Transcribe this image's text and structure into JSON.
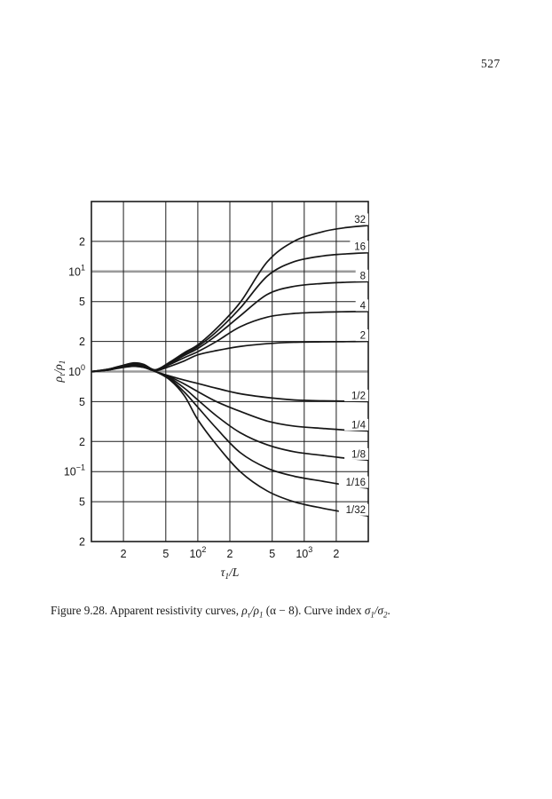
{
  "page": {
    "number": "527"
  },
  "caption": {
    "label": "Figure 9.28.",
    "text1": " Apparent resistivity curves, ",
    "rho": "ρ",
    "tau": "τ",
    "slash": "/",
    "one": "1",
    "two": "2",
    "text2": " (α − 8). Curve index ",
    "sigma": "σ",
    "period": "."
  },
  "chart_data": {
    "type": "line",
    "x_scale": "log",
    "y_scale": "log",
    "x_range": [
      10,
      4000
    ],
    "y_range": [
      0.02,
      50
    ],
    "xlabel": {
      "base": "τ",
      "sub": "1",
      "rest": "/L"
    },
    "ylabel": {
      "rho": "ρ",
      "sub1": "τ",
      "slash": "/",
      "rho2": "ρ",
      "sub2": "1"
    },
    "grid": true,
    "x_gridlines": [
      20,
      50,
      100,
      200,
      500,
      1000,
      2000
    ],
    "y_gridlines": [
      0.05,
      0.1,
      0.2,
      0.5,
      2,
      5,
      20
    ],
    "y_decade_gridlines": [
      1,
      10
    ],
    "x_ticks": [
      {
        "value": 20,
        "label": "2"
      },
      {
        "value": 50,
        "label": "5"
      },
      {
        "value": 100,
        "label": "10",
        "exp": "2"
      },
      {
        "value": 200,
        "label": "2"
      },
      {
        "value": 500,
        "label": "5"
      },
      {
        "value": 1000,
        "label": "10",
        "exp": "3"
      },
      {
        "value": 2000,
        "label": "2"
      }
    ],
    "y_ticks": [
      {
        "value": 20,
        "label": "2"
      },
      {
        "value": 10,
        "label": "10",
        "exp": "1"
      },
      {
        "value": 5,
        "label": "5"
      },
      {
        "value": 2,
        "label": "2"
      },
      {
        "value": 1,
        "label": "10",
        "exp": "0"
      },
      {
        "value": 0.5,
        "label": "5"
      },
      {
        "value": 0.2,
        "label": "2"
      },
      {
        "value": 0.1,
        "label": "10",
        "exp": "−1"
      },
      {
        "value": 0.05,
        "label": "5"
      },
      {
        "value": 0.02,
        "label": "2"
      }
    ],
    "x_values": [
      10,
      14,
      19,
      25,
      31,
      40,
      55,
      75,
      100,
      150,
      250,
      450,
      800,
      1500,
      2500,
      4000
    ],
    "series": [
      {
        "name": "32",
        "label": "32",
        "values": [
          1.0,
          1.05,
          1.14,
          1.22,
          1.18,
          1.04,
          1.25,
          1.55,
          1.85,
          2.7,
          4.9,
          12.5,
          20.0,
          25.0,
          27.5,
          28.8
        ]
      },
      {
        "name": "16",
        "label": "16",
        "values": [
          1.0,
          1.05,
          1.13,
          1.2,
          1.16,
          1.04,
          1.23,
          1.5,
          1.78,
          2.5,
          4.3,
          9.0,
          12.5,
          14.3,
          15.0,
          15.4
        ]
      },
      {
        "name": "8",
        "label": "8",
        "values": [
          1.0,
          1.04,
          1.12,
          1.18,
          1.15,
          1.03,
          1.21,
          1.45,
          1.7,
          2.3,
          3.6,
          5.9,
          7.1,
          7.6,
          7.8,
          7.9
        ]
      },
      {
        "name": "4",
        "label": "4",
        "values": [
          1.0,
          1.04,
          1.11,
          1.16,
          1.13,
          1.03,
          1.18,
          1.38,
          1.58,
          2.0,
          2.8,
          3.5,
          3.8,
          3.92,
          3.96,
          3.98
        ]
      },
      {
        "name": "2",
        "label": "2",
        "values": [
          1.0,
          1.03,
          1.1,
          1.14,
          1.11,
          1.02,
          1.13,
          1.28,
          1.47,
          1.62,
          1.78,
          1.9,
          1.96,
          1.98,
          1.99,
          2.0
        ]
      },
      {
        "name": "1/2",
        "label": "1/2",
        "values": [
          1.0,
          1.03,
          1.09,
          1.13,
          1.1,
          1.0,
          0.9,
          0.82,
          0.76,
          0.68,
          0.6,
          0.55,
          0.52,
          0.51,
          0.505,
          0.5
        ]
      },
      {
        "name": "1/4",
        "label": "1/4",
        "values": [
          1.0,
          1.03,
          1.1,
          1.13,
          1.1,
          1.0,
          0.88,
          0.75,
          0.63,
          0.5,
          0.4,
          0.32,
          0.285,
          0.27,
          0.26,
          0.255
        ]
      },
      {
        "name": "1/8",
        "label": "1/8",
        "values": [
          1.0,
          1.04,
          1.1,
          1.14,
          1.11,
          1.0,
          0.86,
          0.68,
          0.52,
          0.36,
          0.245,
          0.185,
          0.158,
          0.145,
          0.136,
          0.13
        ]
      },
      {
        "name": "1/16",
        "label": "1/16",
        "values": [
          1.0,
          1.04,
          1.11,
          1.14,
          1.11,
          1.0,
          0.84,
          0.62,
          0.44,
          0.27,
          0.155,
          0.108,
          0.09,
          0.08,
          0.073,
          0.068
        ]
      },
      {
        "name": "1/32",
        "label": "1/32",
        "values": [
          1.0,
          1.04,
          1.11,
          1.15,
          1.12,
          1.0,
          0.82,
          0.57,
          0.33,
          0.185,
          0.1,
          0.064,
          0.05,
          0.043,
          0.039,
          0.036
        ]
      }
    ],
    "curve_color": "#161616",
    "grid_color": "#1c1c1c",
    "decade_grid_color": "#9b9b9b",
    "label_box_color": "#ffffff"
  }
}
